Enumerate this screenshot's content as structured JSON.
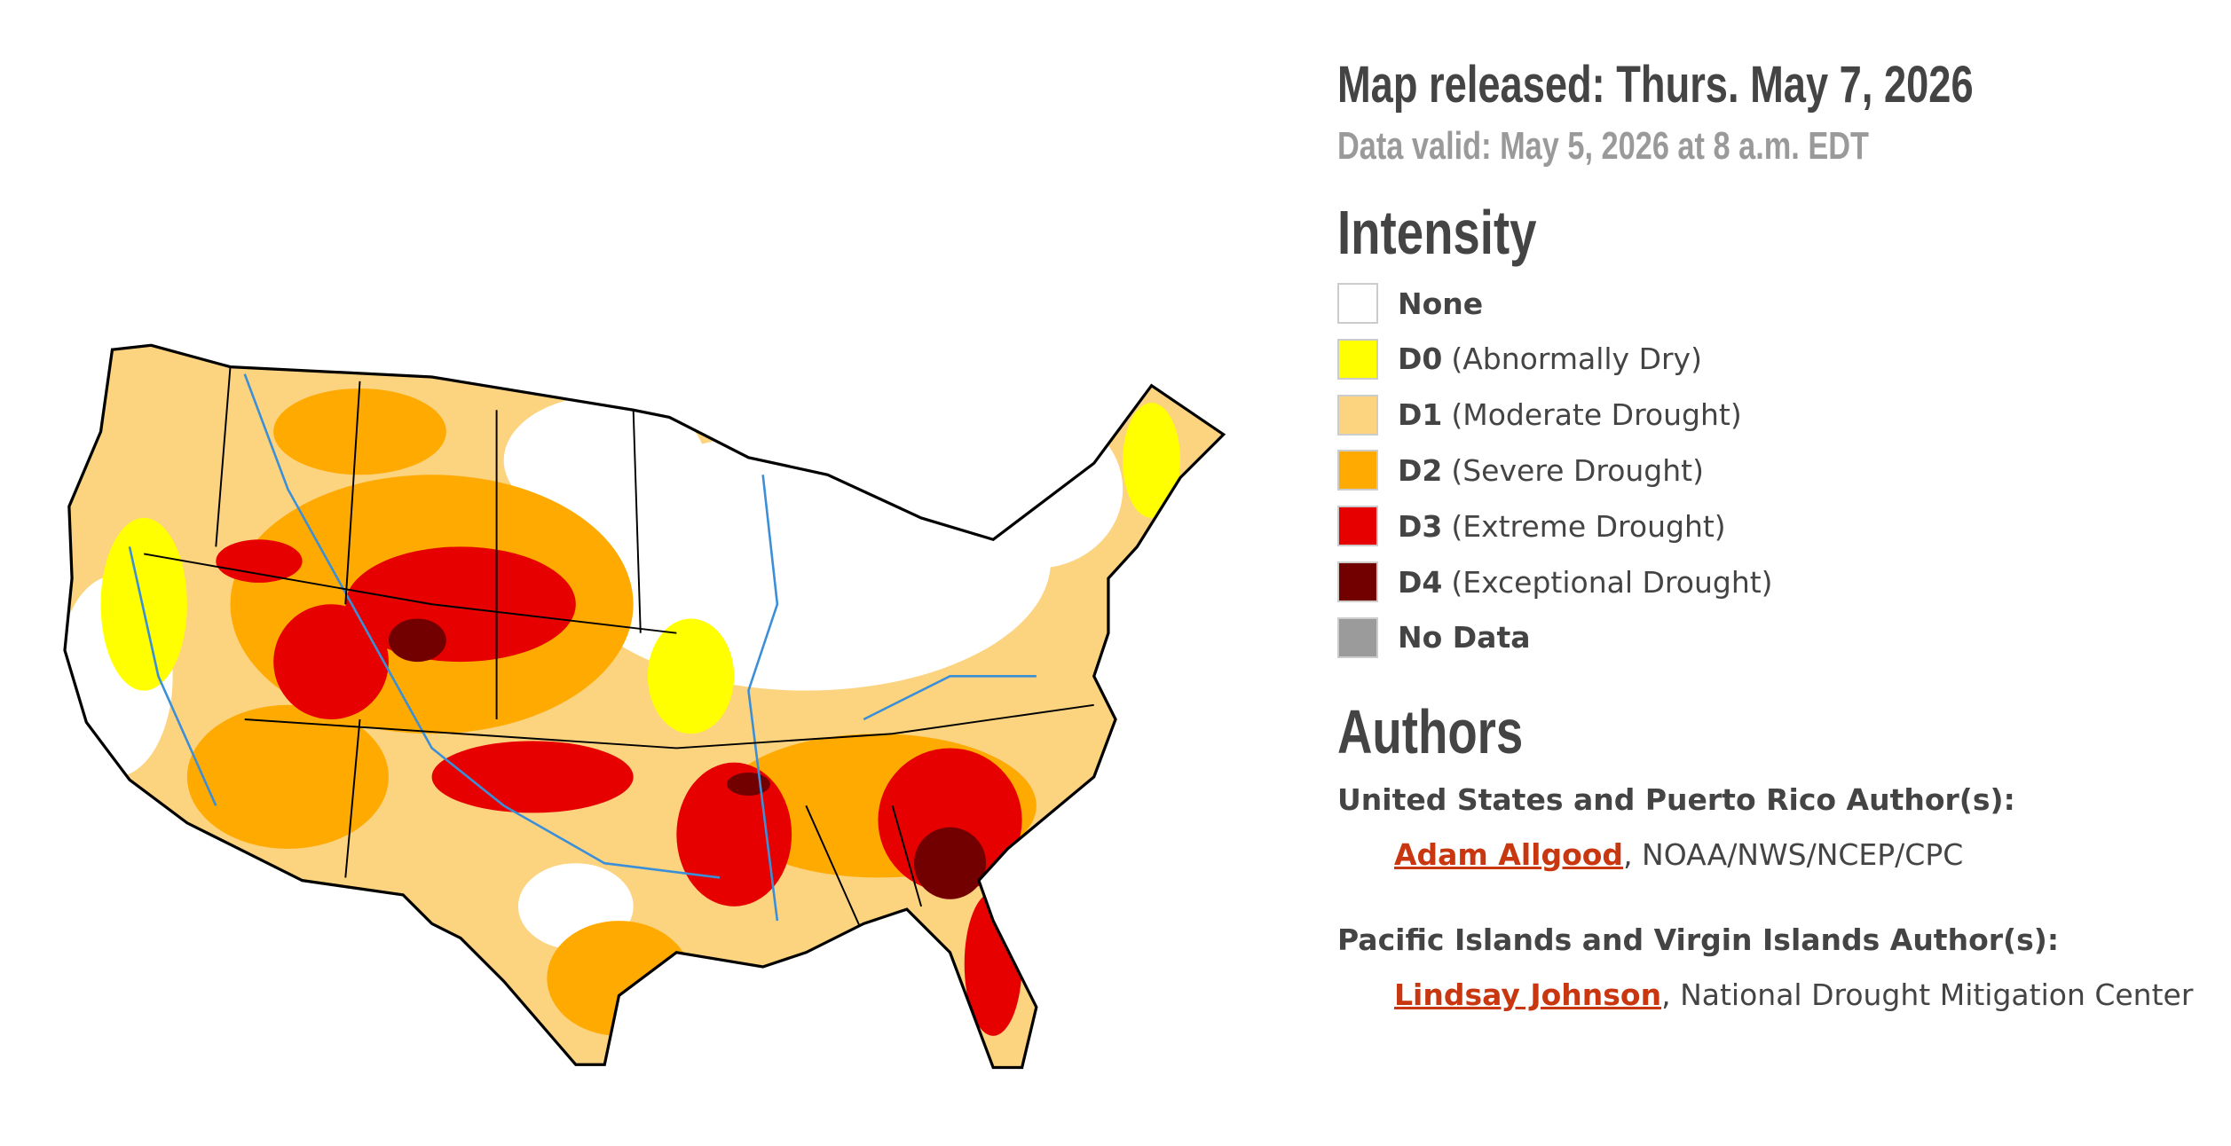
{
  "header": {
    "released": "Map released: Thurs. May 7, 2026",
    "valid": "Data valid: May 5, 2026 at 8 a.m. EDT"
  },
  "legend": {
    "title": "Intensity",
    "items": [
      {
        "label": "None",
        "color": "#ffffff"
      },
      {
        "code": "D0",
        "desc": "(Abnormally Dry)",
        "color": "#ffff00"
      },
      {
        "code": "D1",
        "desc": "(Moderate Drought)",
        "color": "#fcd37f"
      },
      {
        "code": "D2",
        "desc": "(Severe Drought)",
        "color": "#ffaa00"
      },
      {
        "code": "D3",
        "desc": "(Extreme Drought)",
        "color": "#e60000"
      },
      {
        "code": "D4",
        "desc": "(Exceptional Drought)",
        "color": "#730000"
      },
      {
        "label": "No Data",
        "color": "#9b9b9b"
      }
    ]
  },
  "authors": {
    "title": "Authors",
    "sections": [
      {
        "heading": "United States and Puerto Rico Author(s):",
        "name": "Adam Allgood",
        "rest": ", NOAA/NWS/NCEP/CPC"
      },
      {
        "heading": "Pacific Islands and Virgin Islands Author(s):",
        "name": "Lindsay Johnson",
        "rest": ", National Drought Mitigation Center"
      }
    ]
  }
}
